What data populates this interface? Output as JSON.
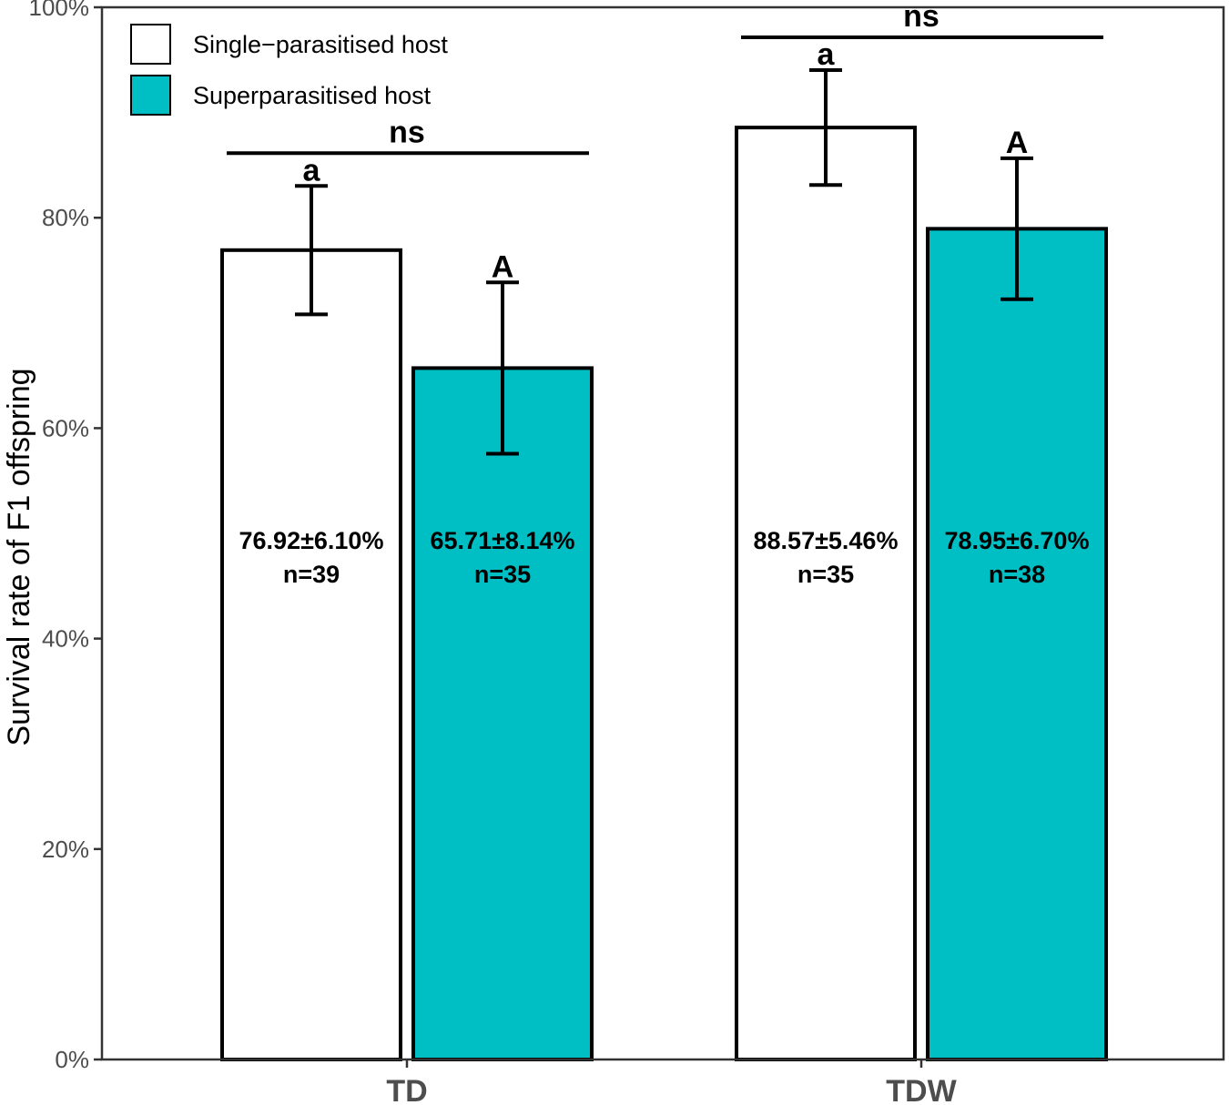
{
  "chart_data": {
    "type": "bar",
    "ylabel": "Survival rate of F1 offspring",
    "xlabel": "",
    "ylim": [
      0,
      100
    ],
    "yticks": [
      0,
      20,
      40,
      60,
      80,
      100
    ],
    "ytick_labels": [
      "0%",
      "20%",
      "40%",
      "60%",
      "80%",
      "100%"
    ],
    "categories": [
      "TD",
      "TDW"
    ],
    "legend_position": "top-left",
    "series": [
      {
        "name": "Single−parasitised host",
        "color": "#ffffff",
        "values": [
          76.92,
          88.57
        ],
        "errors": [
          6.1,
          5.46
        ],
        "value_labels": [
          "76.92±6.10%",
          "88.57±5.46%"
        ],
        "n_labels": [
          "n=39",
          "n=35"
        ],
        "letters": [
          "a",
          "a"
        ]
      },
      {
        "name": "Superparasitised host",
        "color": "#00bfc4",
        "values": [
          65.71,
          78.95
        ],
        "errors": [
          8.14,
          6.7
        ],
        "value_labels": [
          "65.71±8.14%",
          "78.95±6.70%"
        ],
        "n_labels": [
          "n=35",
          "n=38"
        ],
        "letters": [
          "A",
          "A"
        ]
      }
    ],
    "significance": [
      {
        "category": "TD",
        "label": "ns"
      },
      {
        "category": "TDW",
        "label": "ns"
      }
    ]
  }
}
